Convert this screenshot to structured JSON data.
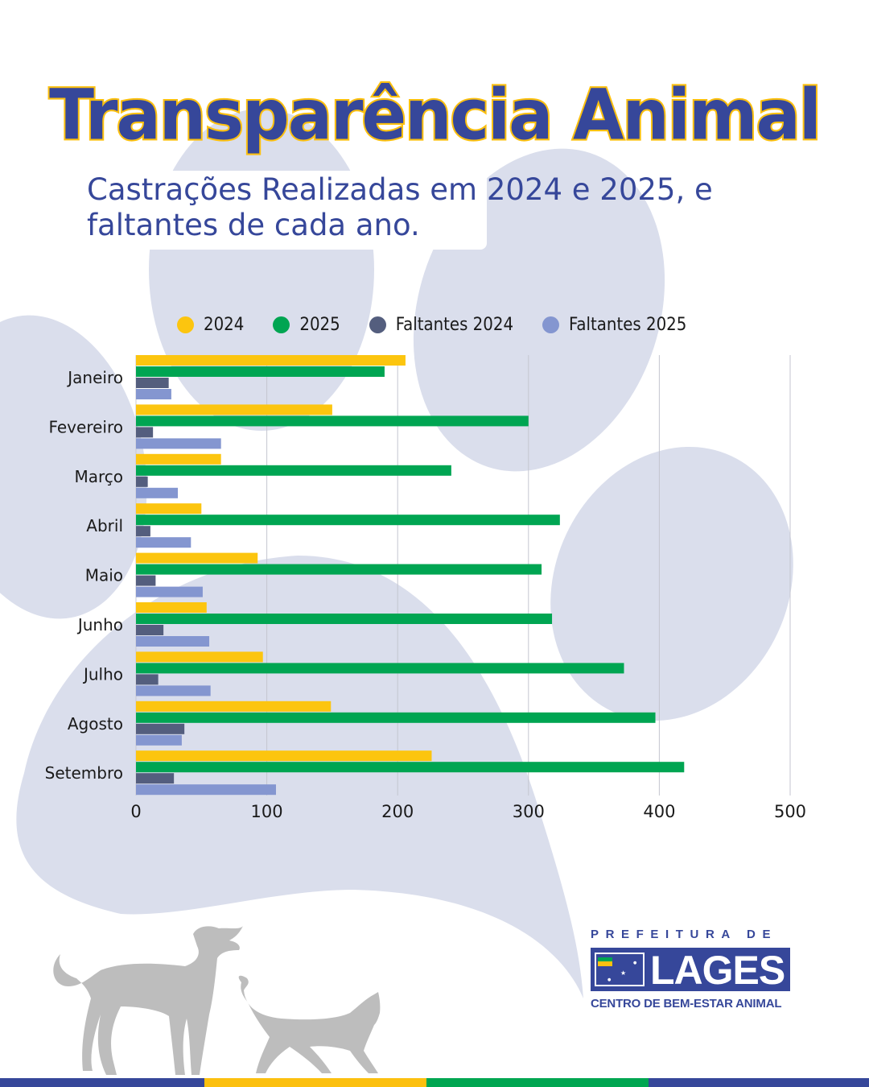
{
  "header": {
    "title": "Transparência Animal",
    "subtitle_line1": "Castrações Realizadas em 2024 e 2025, e",
    "subtitle_line2": "faltantes de cada ano."
  },
  "colors": {
    "brand_blue": "#36479a",
    "brand_yellow": "#fcc00f",
    "brand_green": "#00a651",
    "paw": "#dadeec",
    "silhouette": "#bdbdbd"
  },
  "chart_data": {
    "type": "bar",
    "orientation": "horizontal",
    "title": "Castrações Realizadas em 2024 e 2025, e faltantes de cada ano.",
    "xlabel": "",
    "ylabel": "",
    "xlim": [
      0,
      500
    ],
    "x_ticks": [
      0,
      100,
      200,
      300,
      400,
      500
    ],
    "grid": true,
    "legend_position": "top",
    "categories": [
      "Janeiro",
      "Fevereiro",
      "Março",
      "Abril",
      "Maio",
      "Junho",
      "Julho",
      "Agosto",
      "Setembro"
    ],
    "series": [
      {
        "name": "2024",
        "color": "#fcc50f",
        "values": [
          206,
          150,
          65,
          50,
          93,
          54,
          97,
          149,
          226
        ]
      },
      {
        "name": "2025",
        "color": "#00a552",
        "values": [
          190,
          300,
          241,
          324,
          310,
          318,
          373,
          397,
          419
        ]
      },
      {
        "name": "Faltantes 2024",
        "color": "#545e7e",
        "values": [
          25,
          13,
          9,
          11,
          15,
          21,
          17,
          37,
          29
        ]
      },
      {
        "name": "Faltantes 2025",
        "color": "#8496d0",
        "values": [
          27,
          65,
          32,
          42,
          51,
          56,
          57,
          35,
          107
        ]
      }
    ]
  },
  "logo": {
    "top_text": "PREFEITURA DE",
    "name": "LAGES",
    "bottom_text": "CENTRO DE BEM-ESTAR ANIMAL"
  },
  "footer_stripe": [
    "#36479a",
    "#fcc00f",
    "#00a651",
    "#36479a"
  ]
}
